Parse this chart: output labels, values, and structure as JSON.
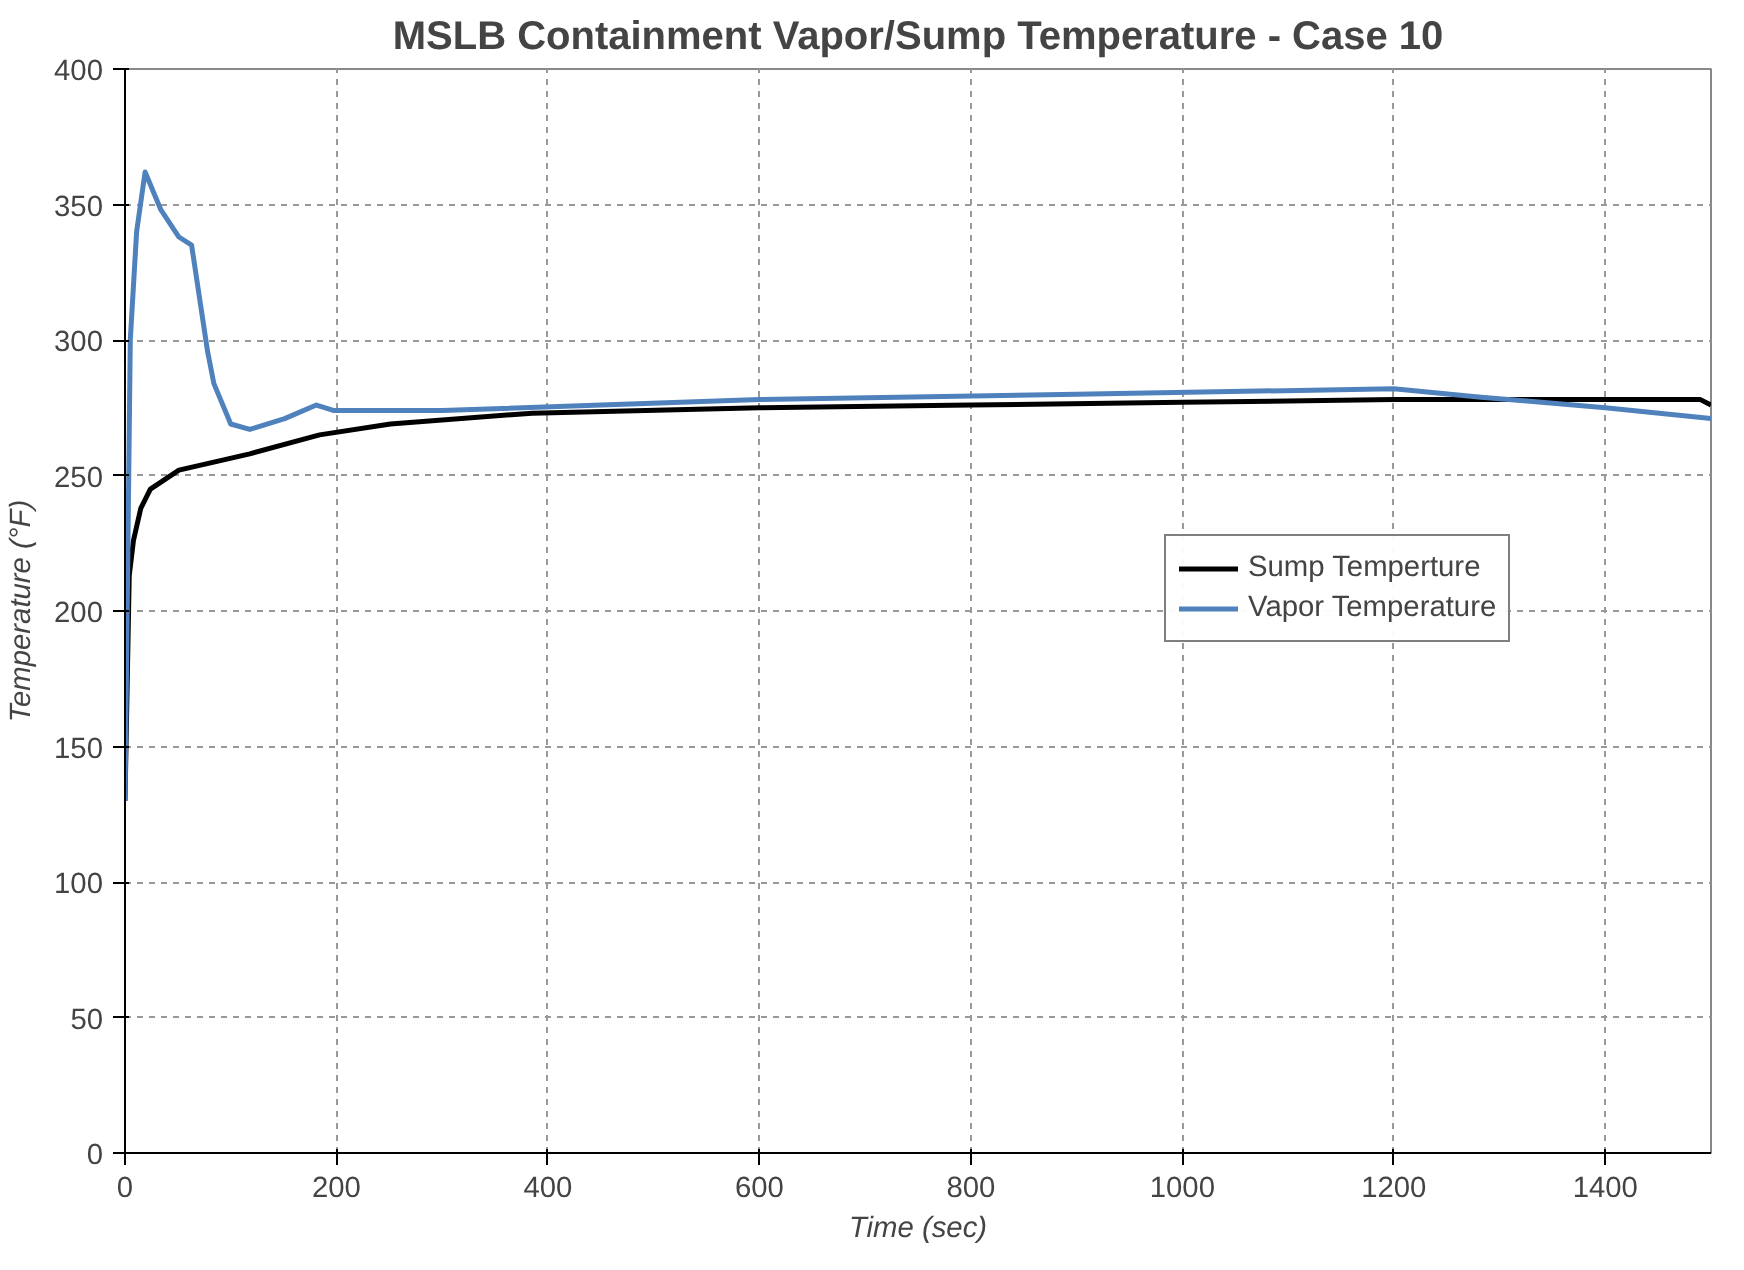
{
  "chart_data": {
    "type": "line",
    "title": "MSLB Containment Vapor/Sump Temperature - Case 10",
    "xlabel": "Time (sec)",
    "ylabel": "Temperature (°F)",
    "xlim": [
      0,
      1500
    ],
    "ylim": [
      0,
      400
    ],
    "xticks": [
      0,
      200,
      400,
      600,
      800,
      1000,
      1200,
      1400
    ],
    "yticks": [
      0,
      50,
      100,
      150,
      200,
      250,
      300,
      350,
      400
    ],
    "grid": true,
    "legend": "right",
    "line_style": "solid",
    "marker": "none",
    "series": [
      {
        "name": "Sump Temperture",
        "color": "#000000",
        "x": [
          0,
          4,
          8,
          15,
          24,
          51,
          118,
          184,
          251,
          385,
          600,
          800,
          1000,
          1200,
          1400,
          1490,
          1500
        ],
        "values": [
          130,
          213,
          226,
          238,
          245,
          252,
          258,
          265,
          269,
          273,
          275,
          276,
          277,
          278,
          278,
          278,
          276
        ]
      },
      {
        "name": "Vapor Temperature",
        "color": "#4f81bd",
        "x": [
          0,
          5,
          11,
          19,
          34,
          51,
          63,
          78,
          84,
          100,
          118,
          151,
          181,
          197,
          300,
          600,
          900,
          1200,
          1280,
          1400,
          1500
        ],
        "values": [
          130,
          300,
          340,
          362,
          348,
          338,
          335,
          296,
          284,
          269,
          267,
          271,
          276,
          274,
          274,
          278,
          280,
          282,
          279,
          275,
          271
        ]
      }
    ]
  }
}
